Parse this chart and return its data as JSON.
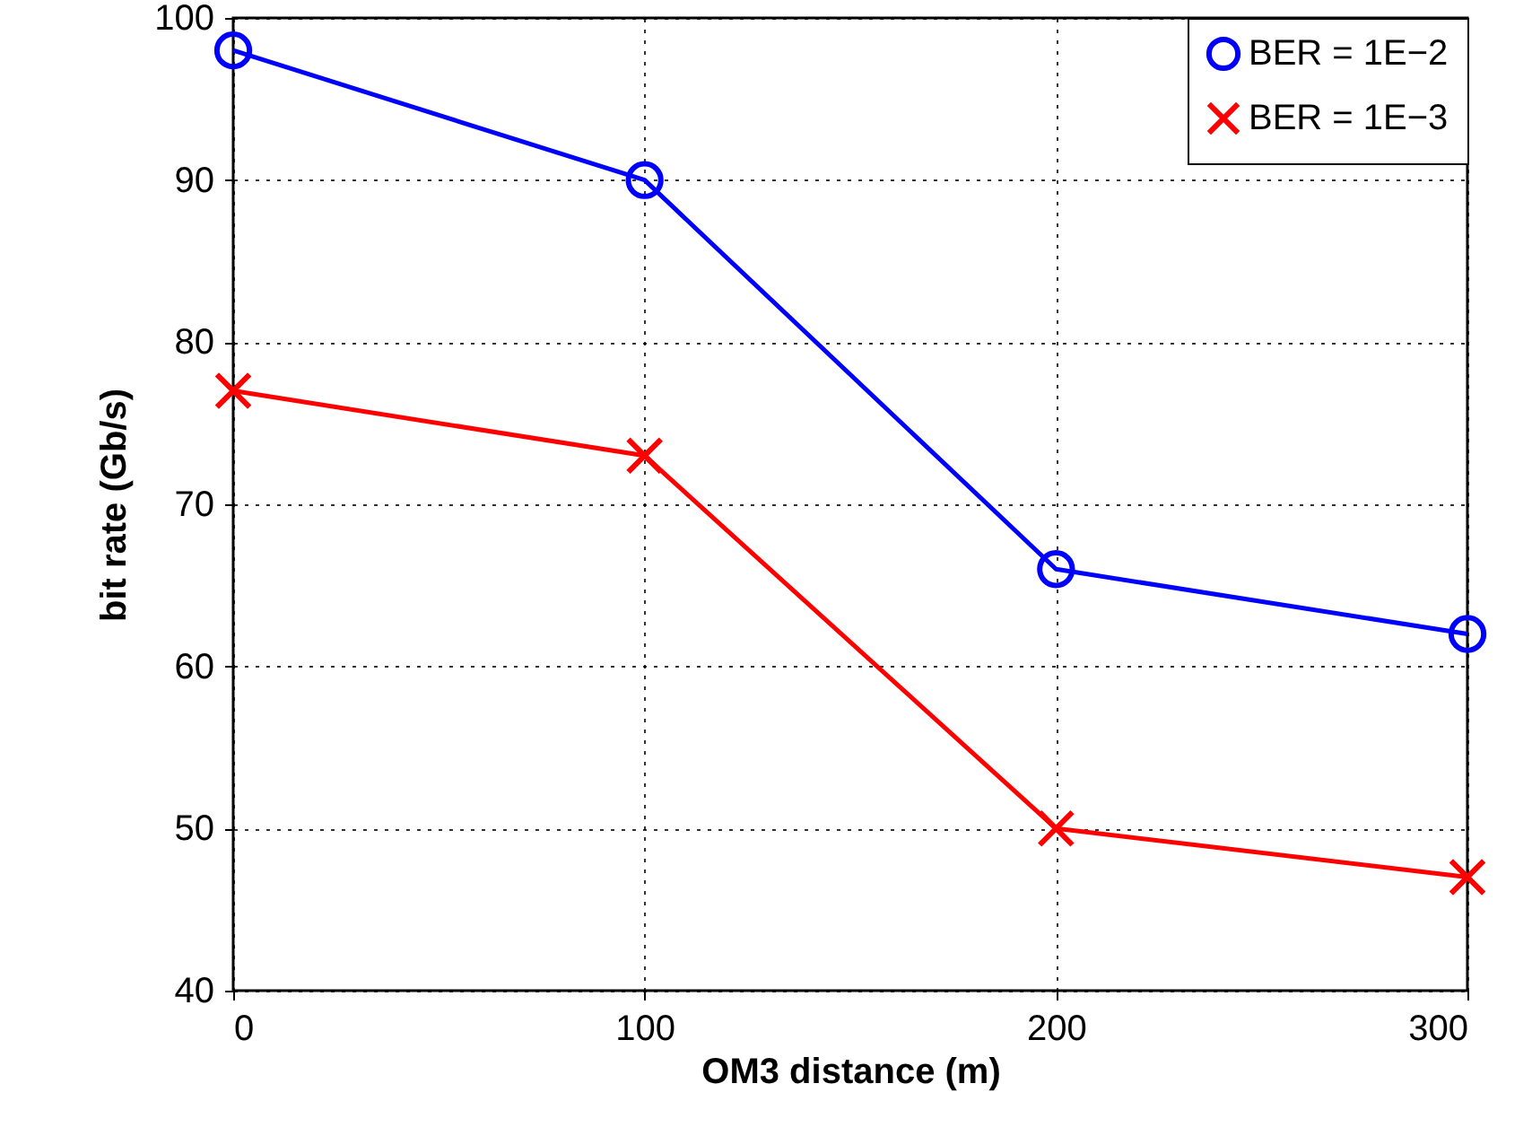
{
  "chart_data": {
    "type": "line",
    "xlabel": "OM3 distance (m)",
    "ylabel": "bit rate (Gb/s)",
    "x": [
      0,
      100,
      200,
      300
    ],
    "series": [
      {
        "name": "BER = 1E−2",
        "color": "#0000ff",
        "values": [
          98,
          90,
          66,
          62
        ],
        "marker": "circle"
      },
      {
        "name": "BER = 1E−3",
        "color": "#ff0000",
        "values": [
          77,
          73,
          50,
          47
        ],
        "marker": "cross"
      }
    ],
    "xlim": [
      0,
      300
    ],
    "xticks": [
      0,
      100,
      200,
      300
    ],
    "ylim": [
      40,
      100
    ],
    "yticks": [
      40,
      50,
      60,
      70,
      80,
      90,
      100
    ],
    "grid": true,
    "legend": "top right",
    "line_style": "solid"
  }
}
